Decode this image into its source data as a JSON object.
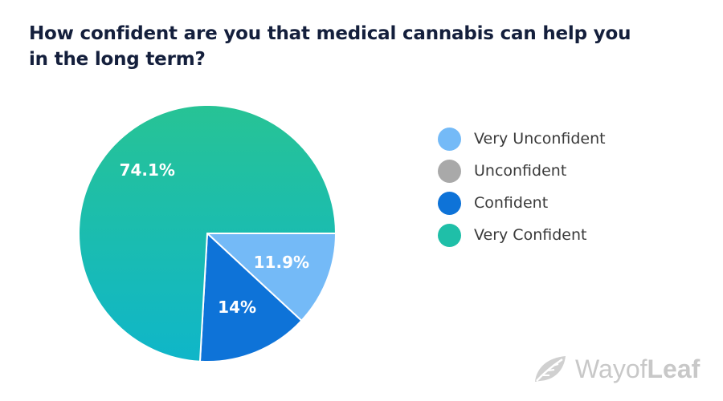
{
  "chart_data": {
    "type": "pie",
    "title": "How confident are you that medical cannabis  can help you in the long term?",
    "slices": [
      {
        "name": "Very Unconfident",
        "value": 11.9,
        "label": "11.9%",
        "color": "#74baf7"
      },
      {
        "name": "Unconfident",
        "value": 0,
        "label": "",
        "color": "#a9a9a9"
      },
      {
        "name": "Confident",
        "value": 14,
        "label": "14%",
        "color": "#0e73d8"
      },
      {
        "name": "Very Confident",
        "value": 74.1,
        "label": "74.1%",
        "color": "#1fbfa8"
      }
    ],
    "legend_position": "right"
  },
  "branding": {
    "watermark_light": "Way",
    "watermark_mid": "of",
    "watermark_bold": "Leaf",
    "icon": "leaf-icon"
  }
}
